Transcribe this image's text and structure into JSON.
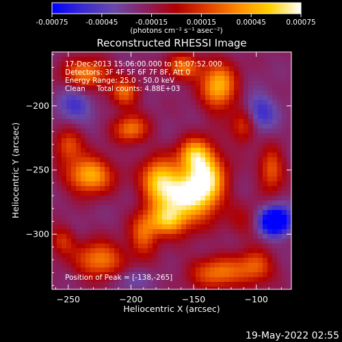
{
  "colorbar": {
    "tick_labels": [
      "-0.00075",
      "-0.00045",
      "-0.00015",
      "0.00015",
      "0.00045",
      "0.00075"
    ],
    "tick_values": [
      -0.00075,
      -0.00045,
      -0.00015,
      0.00015,
      0.00045,
      0.00075
    ],
    "range": [
      -0.00075,
      0.00075
    ],
    "units_label": "(photons cm⁻² s⁻¹ asec⁻²)",
    "stops": [
      "#0000ff",
      "#3b2bd0",
      "#6a49a8",
      "#8a2060",
      "#b00000",
      "#e04000",
      "#ff8c00",
      "#ffd000",
      "#ffffff"
    ]
  },
  "chart_data": {
    "type": "heatmap",
    "title": "Reconstructed RHESSI Image",
    "xlabel": "Heliocentric X (arcsec)",
    "ylabel": "Heliocentric Y (arcsec)",
    "xlim": [
      -263,
      -72
    ],
    "ylim": [
      -343,
      -158
    ],
    "x_ticks": [
      -250,
      -200,
      -150,
      -100
    ],
    "y_ticks": [
      -200,
      -250,
      -300
    ],
    "peak": [
      -138,
      -265
    ],
    "sources": [
      {
        "x": -140,
        "y": -258,
        "w": 0.9,
        "sx": 11,
        "sy": 16
      },
      {
        "x": -160,
        "y": -272,
        "w": 0.85,
        "sx": 14,
        "sy": 15
      },
      {
        "x": -178,
        "y": -258,
        "w": 0.7,
        "sx": 10,
        "sy": 12
      },
      {
        "x": -150,
        "y": -238,
        "w": 0.6,
        "sx": 9,
        "sy": 9
      },
      {
        "x": -172,
        "y": -290,
        "w": 0.55,
        "sx": 10,
        "sy": 8
      },
      {
        "x": -233,
        "y": -254,
        "w": 0.75,
        "sx": 13,
        "sy": 10
      },
      {
        "x": -250,
        "y": -230,
        "w": 0.45,
        "sx": 8,
        "sy": 9
      },
      {
        "x": -200,
        "y": -218,
        "w": 0.55,
        "sx": 10,
        "sy": 8
      },
      {
        "x": -205,
        "y": -190,
        "w": 0.5,
        "sx": 8,
        "sy": 8
      },
      {
        "x": -190,
        "y": -300,
        "w": 0.5,
        "sx": 8,
        "sy": 12
      },
      {
        "x": -225,
        "y": -320,
        "w": 0.6,
        "sx": 14,
        "sy": 10
      },
      {
        "x": -255,
        "y": -305,
        "w": 0.35,
        "sx": 7,
        "sy": 8
      },
      {
        "x": -130,
        "y": -330,
        "w": 0.55,
        "sx": 16,
        "sy": 9
      },
      {
        "x": -100,
        "y": -325,
        "w": 0.45,
        "sx": 10,
        "sy": 9
      },
      {
        "x": -88,
        "y": -250,
        "w": 0.5,
        "sx": 7,
        "sy": 12
      },
      {
        "x": -110,
        "y": -215,
        "w": 0.45,
        "sx": 7,
        "sy": 10
      },
      {
        "x": -130,
        "y": -185,
        "w": 0.75,
        "sx": 10,
        "sy": 13
      },
      {
        "x": -158,
        "y": -170,
        "w": 0.55,
        "sx": 10,
        "sy": 7
      },
      {
        "x": -235,
        "y": -175,
        "w": 0.6,
        "sx": 13,
        "sy": 8
      },
      {
        "x": -110,
        "y": -290,
        "w": 0.2,
        "sx": 10,
        "sy": 10
      },
      {
        "x": -85,
        "y": -290,
        "w": -0.9,
        "sx": 9,
        "sy": 8
      },
      {
        "x": -98,
        "y": -205,
        "w": -0.4,
        "sx": 10,
        "sy": 10
      },
      {
        "x": -245,
        "y": -200,
        "w": -0.35,
        "sx": 10,
        "sy": 9
      },
      {
        "x": -200,
        "y": -335,
        "w": -0.2,
        "sx": 10,
        "sy": 6
      }
    ]
  },
  "annotations": {
    "time_range": "17-Dec-2013 15:06:00.000 to 15:07:52.000",
    "detectors": "Detectors: 3F 4F 5F 6F 7F 8F, Att 0",
    "energy": "Energy Range: 25.0 - 50.0 keV",
    "clean": "Clean     Total counts: 4.88E+03",
    "peak_text": "Position of Peak = [-138,-265]"
  },
  "footer": {
    "date": "19-May-2022 02:55"
  }
}
